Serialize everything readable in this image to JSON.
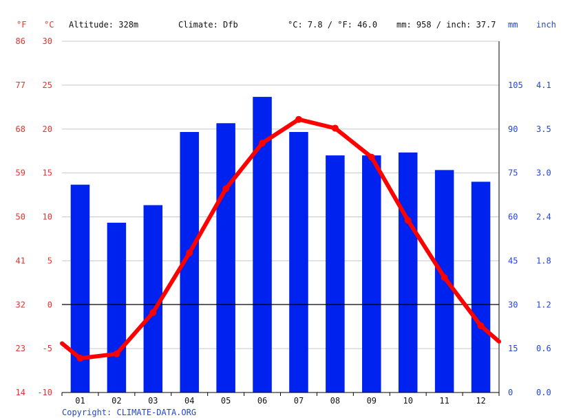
{
  "header": {
    "unit_f": "°F",
    "unit_c": "°C",
    "altitude": "Altitude: 328m",
    "climate": "Climate: Dfb",
    "avg_temp": "°C: 7.8 / °F: 46.0",
    "precip_total": "mm: 958 / inch: 37.7",
    "unit_mm": "mm",
    "unit_inch": "inch"
  },
  "footer": {
    "copyright": "Copyright: CLIMATE-DATA.ORG"
  },
  "colors": {
    "temperature": "#ff0000",
    "precipitation": "#0022ee",
    "text_red": "#e8312c",
    "text_blue": "#2244dd",
    "grid": "#c8c8c8"
  },
  "chart_data": {
    "type": "bar",
    "categories": [
      "01",
      "02",
      "03",
      "04",
      "05",
      "06",
      "07",
      "08",
      "09",
      "10",
      "11",
      "12"
    ],
    "series": [
      {
        "kind": "bar",
        "axis": "precip_mm",
        "values": [
          71,
          58,
          64,
          89,
          92,
          101,
          89,
          81,
          81,
          82,
          76,
          72
        ]
      },
      {
        "kind": "line",
        "axis": "temp_c",
        "values": [
          -6.1,
          -5.6,
          -0.9,
          5.9,
          13.2,
          18.4,
          21.1,
          20.1,
          16.8,
          9.6,
          3.1,
          -2.4
        ]
      }
    ],
    "line_end_values": {
      "left": -4.4,
      "right": -4.2
    },
    "axes": {
      "temp_c": {
        "ylim": [
          -10,
          30
        ],
        "ticks": [
          "30",
          "25",
          "20",
          "15",
          "10",
          "5",
          "0",
          "-5",
          "-10"
        ]
      },
      "temp_f": {
        "ticks": [
          "86",
          "77",
          "68",
          "59",
          "50",
          "41",
          "32",
          "23",
          "14"
        ]
      },
      "precip_mm": {
        "ylim": [
          0,
          120
        ],
        "ticks": [
          "105",
          "90",
          "75",
          "60",
          "45",
          "30",
          "15",
          "0"
        ]
      },
      "precip_inch": {
        "ticks": [
          "4.1",
          "3.5",
          "3.0",
          "2.4",
          "1.8",
          "1.2",
          "0.6",
          "0.0"
        ]
      }
    },
    "grid": true
  }
}
